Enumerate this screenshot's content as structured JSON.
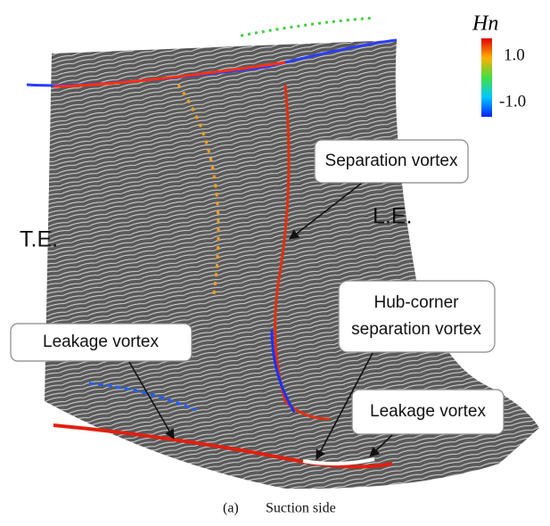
{
  "colorbar": {
    "title": "Hn",
    "ticks": [
      "1.0",
      "-1.0"
    ]
  },
  "labels": {
    "trailing_edge": "T.E.",
    "leading_edge": "L.E.",
    "separation_vortex": "Separation vortex",
    "hub_corner": [
      "Hub-corner",
      "separation vortex"
    ],
    "leakage_left": "Leakage vortex",
    "leakage_right": "Leakage vortex"
  },
  "caption": {
    "panel": "(a)",
    "text": "Suction side"
  }
}
